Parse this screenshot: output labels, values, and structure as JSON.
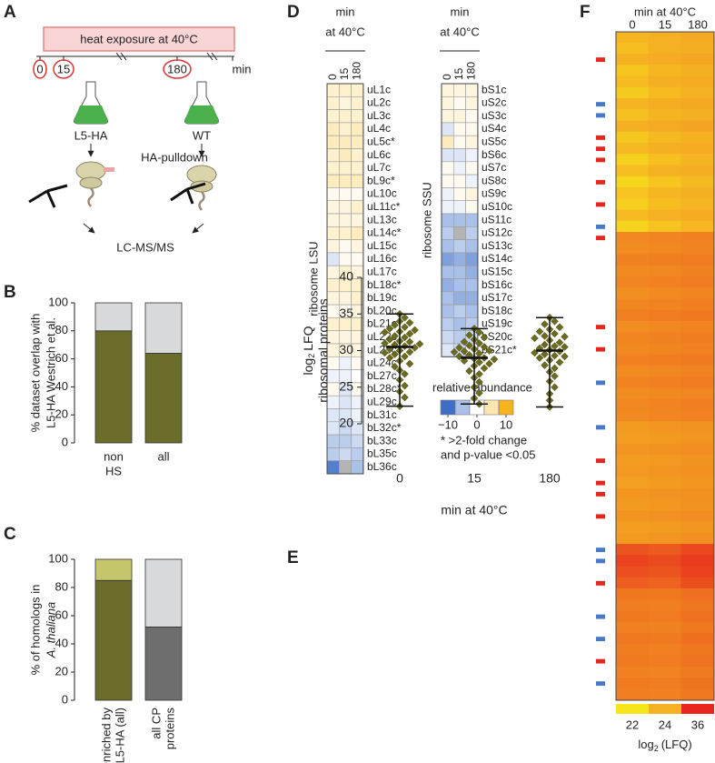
{
  "panel_labels": [
    "A",
    "B",
    "C",
    "D",
    "E",
    "F"
  ],
  "diagram": {
    "banner": "heat exposure at 40°C",
    "timeline": [
      "0",
      "15",
      "180",
      "min"
    ],
    "strains": [
      "L5-HA",
      "WT"
    ],
    "step": "HA-pulldown",
    "readout": "LC-MS/MS"
  },
  "chart_data": [
    {
      "type": "bar",
      "ylabel": [
        "% dataset overlap with",
        "L5-HA Westrich et al."
      ],
      "categories": [
        [
          "non",
          "HS"
        ],
        [
          "all"
        ]
      ],
      "series": [
        {
          "color": "#6b6b2a",
          "values": [
            80,
            64
          ]
        },
        {
          "color": "#d9dadc",
          "values": [
            20,
            36
          ]
        }
      ],
      "ylim": [
        0,
        100
      ],
      "yticks": [
        0,
        20,
        40,
        60,
        80,
        100
      ]
    },
    {
      "type": "bar",
      "ylabel": [
        "% of homologs in",
        "A. thaliana"
      ],
      "categories": [
        [
          "enriched by",
          "L5-HA (all)"
        ],
        [
          "all CP",
          "proteins"
        ]
      ],
      "series": [
        {
          "colors": [
            "#6b6b2a",
            "#6e6e6e"
          ],
          "values": [
            85,
            52
          ]
        },
        {
          "colors": [
            "#c5c56c",
            "#d9dadc"
          ],
          "values": [
            15,
            48
          ]
        }
      ],
      "ylim": [
        0,
        100
      ],
      "yticks": [
        0,
        20,
        40,
        60,
        80,
        100
      ]
    },
    {
      "type": "heatmap",
      "title": [
        "min",
        "at 40°C"
      ],
      "ylabel": "ribosome LSU",
      "columns": [
        "0",
        "15",
        "180"
      ],
      "rows": [
        "uL1c",
        "uL2c",
        "uL3c",
        "uL4c",
        "uL5c*",
        "uL6c",
        "uL7c",
        "bL9c*",
        "uL10c",
        "uL11c*",
        "uL13c",
        "uL14c*",
        "uL15c",
        "uL16c",
        "uL17c",
        "bL18c*",
        "bL19c",
        "bL20c",
        "bL21c",
        "uL22c",
        "uL23c",
        "uL24c*",
        "bL27c",
        "bL28c*",
        "uL29c",
        "bL31c",
        "bL32c*",
        "bL33c",
        "bL35c",
        "bL36c"
      ],
      "values": [
        [
          3,
          3,
          3
        ],
        [
          3,
          2,
          3
        ],
        [
          3,
          3,
          3
        ],
        [
          4,
          3,
          4
        ],
        [
          4,
          4,
          4
        ],
        [
          3,
          4,
          3
        ],
        [
          3,
          3,
          3
        ],
        [
          4,
          4,
          4
        ],
        [
          1,
          1,
          1
        ],
        [
          2,
          2,
          3
        ],
        [
          2,
          2,
          2
        ],
        [
          3,
          3,
          4
        ],
        [
          2,
          1,
          2
        ],
        [
          -2,
          1,
          1
        ],
        [
          2,
          3,
          2
        ],
        [
          3,
          3,
          3
        ],
        [
          2,
          2,
          3
        ],
        [
          1,
          1,
          2
        ],
        [
          3,
          3,
          3
        ],
        [
          2,
          2,
          2
        ],
        [
          2,
          2,
          2
        ],
        [
          1,
          -1,
          1
        ],
        [
          -1,
          -1,
          0
        ],
        [
          1,
          -2,
          1
        ],
        [
          -1,
          -2,
          -1
        ],
        [
          -2,
          -2,
          -1
        ],
        [
          -2,
          -3,
          -2
        ],
        [
          -4,
          -4,
          -3
        ],
        [
          -4,
          -3,
          -4
        ],
        [
          -9,
          null,
          -5
        ]
      ]
    },
    {
      "type": "heatmap",
      "title": [
        "min",
        "at 40°C"
      ],
      "ylabel": "ribosome SSU",
      "columns": [
        "0",
        "15",
        "180"
      ],
      "rows": [
        "bS1c",
        "uS2c",
        "uS3c",
        "uS4c",
        "uS5c",
        "bS6c",
        "uS7c",
        "uS8c",
        "uS9c",
        "uS10c",
        "uS11c",
        "uS12c",
        "uS13c",
        "uS14c",
        "uS15c",
        "bS16c",
        "uS17c",
        "bS18c",
        "uS19c",
        "bS20c",
        "bS21c*"
      ],
      "values": [
        [
          2,
          2,
          2
        ],
        [
          2,
          1,
          2
        ],
        [
          2,
          2,
          1
        ],
        [
          -2,
          1,
          1
        ],
        [
          4,
          1,
          2
        ],
        [
          -2,
          -2,
          -1
        ],
        [
          1,
          -1,
          1
        ],
        [
          1,
          1,
          -1
        ],
        [
          -1,
          1,
          2
        ],
        [
          -1,
          -1,
          1
        ],
        [
          -5,
          -5,
          -5
        ],
        [
          -4,
          null,
          -4
        ],
        [
          -5,
          -4,
          -5
        ],
        [
          -7,
          -6,
          -7
        ],
        [
          -5,
          -5,
          -6
        ],
        [
          -6,
          -5,
          -5
        ],
        [
          -5,
          -6,
          -6
        ],
        [
          -5,
          -4,
          -5
        ],
        [
          -4,
          -5,
          -4
        ],
        [
          -3,
          -4,
          -3
        ],
        [
          -2,
          -3,
          -1
        ]
      ],
      "legend_title": "relative abundance",
      "colorscale": [
        {
          "value": -10,
          "color": "#3f6fc4"
        },
        {
          "value": -5,
          "color": "#a9c0e8"
        },
        {
          "value": 0,
          "color": "#ffffff"
        },
        {
          "value": 5,
          "color": "#fde7ae"
        },
        {
          "value": 10,
          "color": "#f4b41c"
        }
      ],
      "colorbar_ticks": [
        {
          "value": -10,
          "label": "−10"
        },
        0,
        10
      ],
      "notes": [
        "* >2-fold change",
        "and p-value <0.05"
      ]
    },
    {
      "type": "dotplot",
      "ylabel": [
        {
          "base": "log",
          "sub": "2",
          "rest": "LFQ"
        },
        "ribosomal proteins"
      ],
      "xlabel": "min at 40°C",
      "categories": [
        "0",
        "15",
        "180"
      ],
      "color": "#6b6b1f",
      "values": [
        [
          35.0,
          34.5,
          34.0,
          33.8,
          33.5,
          33.2,
          33.0,
          32.8,
          32.5,
          32.3,
          32.0,
          31.8,
          31.5,
          31.3,
          31.0,
          30.8,
          30.6,
          30.4,
          30.2,
          30.0,
          29.8,
          29.5,
          29.2,
          29.0,
          28.6,
          28.2,
          27.8,
          27.3,
          26.8,
          26.0,
          25.2,
          24.4,
          23.6,
          22.4,
          31.2,
          32.6,
          30.9,
          29.7
        ],
        [
          33.0,
          32.5,
          32.1,
          31.8,
          31.5,
          31.2,
          31.0,
          30.7,
          30.4,
          30.2,
          30.0,
          29.8,
          29.6,
          29.4,
          29.2,
          29.0,
          28.8,
          28.6,
          28.4,
          28.2,
          27.9,
          27.6,
          27.2,
          26.8,
          26.3,
          25.7,
          25.0,
          24.2,
          23.5,
          22.7,
          29.9,
          28.9,
          30.5
        ],
        [
          34.5,
          34.0,
          33.6,
          33.2,
          32.9,
          32.6,
          32.3,
          32.0,
          31.7,
          31.4,
          31.1,
          30.8,
          30.5,
          30.3,
          30.1,
          29.9,
          29.7,
          29.5,
          29.3,
          29.0,
          28.7,
          28.4,
          28.0,
          27.6,
          27.1,
          26.5,
          25.8,
          25.0,
          24.1,
          23.2,
          22.3,
          30.6,
          31.9,
          29.2
        ]
      ],
      "mean": [
        30.5,
        29.0,
        30.0
      ],
      "min": [
        22.4,
        22.7,
        22.3
      ],
      "max": [
        35.0,
        33.0,
        34.5
      ],
      "ylim": [
        20,
        40
      ],
      "yticks": [
        20,
        25,
        30,
        35,
        40
      ]
    },
    {
      "type": "heatmap",
      "title": [
        "min at 40°C"
      ],
      "columns": [
        "0",
        "15",
        "180"
      ],
      "values": [
        [
          23.8,
          24.2,
          24.6
        ],
        [
          23.5,
          24.0,
          24.3
        ],
        [
          24.0,
          24.4,
          24.8
        ],
        [
          23.2,
          23.8,
          24.1
        ],
        [
          23.6,
          24.1,
          24.5
        ],
        [
          23.0,
          23.6,
          24.0
        ],
        [
          23.9,
          24.3,
          24.7
        ],
        [
          23.4,
          23.9,
          24.2
        ],
        [
          24.2,
          24.6,
          25.0
        ],
        [
          23.1,
          23.7,
          24.0
        ],
        [
          23.7,
          24.1,
          24.4
        ],
        [
          22.8,
          23.4,
          23.9
        ],
        [
          23.5,
          24.0,
          24.3
        ],
        [
          22.6,
          23.2,
          23.7
        ],
        [
          23.3,
          23.8,
          24.1
        ],
        [
          22.9,
          23.5,
          23.9
        ],
        [
          23.6,
          24.0,
          24.4
        ],
        [
          22.7,
          23.3,
          23.8
        ],
        [
          27.5,
          27.8,
          28.2
        ],
        [
          27.0,
          27.4,
          27.9
        ],
        [
          28.0,
          28.3,
          28.6
        ],
        [
          27.3,
          27.6,
          28.0
        ],
        [
          27.8,
          28.1,
          28.5
        ],
        [
          26.9,
          27.3,
          27.7
        ],
        [
          27.6,
          27.9,
          28.3
        ],
        [
          28.2,
          28.5,
          28.8
        ],
        [
          27.1,
          27.5,
          27.9
        ],
        [
          27.7,
          28.0,
          28.4
        ],
        [
          27.4,
          27.7,
          28.1
        ],
        [
          28.1,
          28.4,
          28.7
        ],
        [
          27.2,
          27.6,
          28.0
        ],
        [
          27.9,
          28.2,
          28.6
        ],
        [
          27.0,
          27.4,
          27.8
        ],
        [
          27.6,
          27.9,
          28.3
        ],
        [
          27.3,
          27.7,
          28.1
        ],
        [
          26.0,
          26.3,
          26.7
        ],
        [
          25.6,
          26.0,
          26.4
        ],
        [
          26.3,
          26.6,
          27.0
        ],
        [
          25.8,
          26.1,
          26.5
        ],
        [
          26.1,
          26.4,
          26.8
        ],
        [
          25.5,
          25.9,
          26.3
        ],
        [
          26.2,
          26.5,
          26.9
        ],
        [
          25.9,
          26.2,
          26.6
        ],
        [
          26.4,
          26.7,
          27.1
        ],
        [
          25.7,
          26.0,
          26.4
        ],
        [
          26.0,
          26.4,
          26.8
        ],
        [
          32.0,
          31.5,
          33.0
        ],
        [
          33.5,
          32.8,
          34.2
        ],
        [
          32.5,
          32.0,
          33.6
        ],
        [
          31.2,
          30.8,
          32.4
        ],
        [
          29.0,
          28.8,
          29.6
        ],
        [
          28.5,
          28.3,
          29.1
        ],
        [
          28.8,
          28.6,
          29.4
        ],
        [
          28.2,
          28.0,
          28.8
        ],
        [
          28.9,
          28.7,
          29.5
        ],
        [
          28.4,
          28.2,
          29.0
        ],
        [
          28.7,
          28.5,
          29.3
        ],
        [
          28.1,
          27.9,
          28.7
        ],
        [
          28.6,
          28.4,
          29.2
        ],
        [
          28.3,
          28.1,
          28.9
        ]
      ],
      "row_marks": [
        null,
        null,
        "#e8251e",
        null,
        null,
        null,
        "#4a78c8",
        "#4a78c8",
        null,
        "#e8251e",
        "#e8251e",
        "#e8251e",
        null,
        "#e8251e",
        null,
        "#e8251e",
        null,
        "#4a78c8",
        "#e8251e",
        null,
        null,
        null,
        null,
        null,
        null,
        null,
        "#e8251e",
        null,
        "#e8251e",
        null,
        null,
        "#4a78c8",
        null,
        null,
        null,
        "#4a78c8",
        null,
        null,
        "#e8251e",
        null,
        "#e8251e",
        "#e8251e",
        null,
        "#e8251e",
        null,
        null,
        "#4a78c8",
        "#4a78c8",
        null,
        "#e8251e",
        null,
        null,
        "#4a78c8",
        null,
        "#4a78c8",
        null,
        "#e8251e",
        null,
        "#4a78c8",
        null
      ],
      "colorscale": [
        {
          "value": 22,
          "color": "#f7e51b"
        },
        {
          "value": 24,
          "color": "#f5b122"
        },
        {
          "value": 36,
          "color": "#e8251e"
        }
      ],
      "colorbar_label": {
        "base": "log",
        "sub": "2",
        "rest": "(LFQ)"
      }
    }
  ]
}
